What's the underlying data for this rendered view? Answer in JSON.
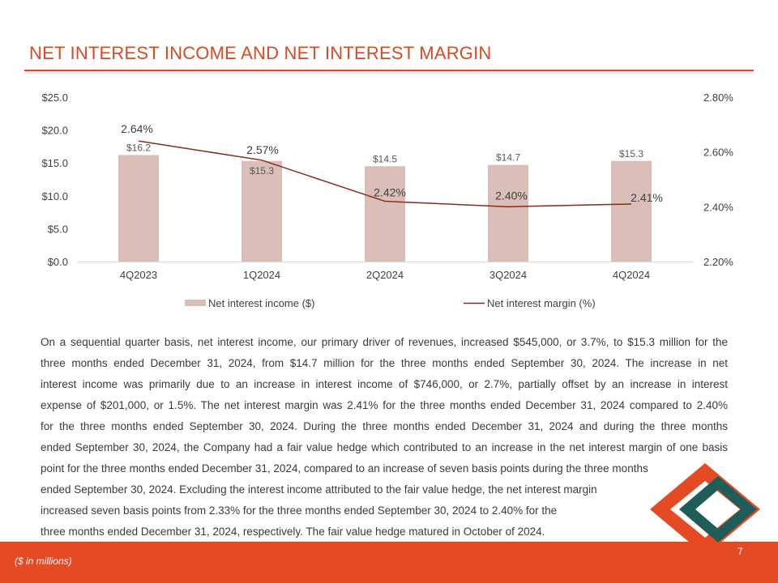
{
  "slide": {
    "title": "NET INTEREST INCOME AND NET INTEREST MARGIN",
    "page_number": "7",
    "footnote": "($ in millions)",
    "accent_color": "#e44a23"
  },
  "chart_data": {
    "type": "bar",
    "categories": [
      "4Q2023",
      "1Q2024",
      "2Q2024",
      "3Q2024",
      "4Q2024"
    ],
    "series": [
      {
        "name": "Net interest income ($)",
        "kind": "bar",
        "axis": "left",
        "values": [
          16.2,
          15.3,
          14.5,
          14.7,
          15.3
        ],
        "labels": [
          "$16.2",
          "$15.3",
          "$14.5",
          "$14.7",
          "$15.3"
        ],
        "color": "#d9bfb8"
      },
      {
        "name": "Net interest margin (%)",
        "kind": "line",
        "axis": "right",
        "values": [
          2.64,
          2.57,
          2.42,
          2.4,
          2.41
        ],
        "labels": [
          "2.64%",
          "2.57%",
          "2.42%",
          "2.40%",
          "2.41%"
        ],
        "color": "#8b2a1a"
      }
    ],
    "y_left": {
      "lim": [
        0,
        25
      ],
      "ticks": [
        "$0.0",
        "$5.0",
        "$10.0",
        "$15.0",
        "$20.0",
        "$25.0"
      ]
    },
    "y_right": {
      "lim": [
        2.2,
        2.8
      ],
      "ticks": [
        "2.20%",
        "2.40%",
        "2.60%",
        "2.80%"
      ]
    },
    "grid": false,
    "legend_position": "bottom"
  },
  "body_lines": [
    "On a sequential quarter basis, net interest income, our primary driver of revenues, increased $545,000, or 3.7%, to $15.3 million for the",
    "three months ended December 31, 2024, from $14.7 million for the three months ended September 30, 2024. The increase in net",
    "interest income was primarily due to an increase in interest income of $746,000, or 2.7%, partially offset by an increase in interest",
    "expense of $201,000, or 1.5%. The net interest margin was 2.41% for the three months ended December 31, 2024 compared to 2.40%",
    "for the three months ended September 30, 2024. During the three months ended December 31, 2024 and during the three months",
    "ended September 30, 2024, the Company had a fair value hedge which contributed to an increase in the net interest margin of one basis",
    "point for the three months ended December 31, 2024, compared to an increase of seven basis points during the three months",
    "ended September 30, 2024. Excluding the interest income attributed to the fair value hedge, the net interest margin",
    "increased seven basis points from 2.33% for the three months ended September 30, 2024 to 2.40% for the",
    "three months ended December 31, 2024, respectively. The fair value hedge matured in October of 2024."
  ],
  "logo": {
    "outer_color": "#e44a23",
    "inner_color": "#1e5d5a"
  }
}
